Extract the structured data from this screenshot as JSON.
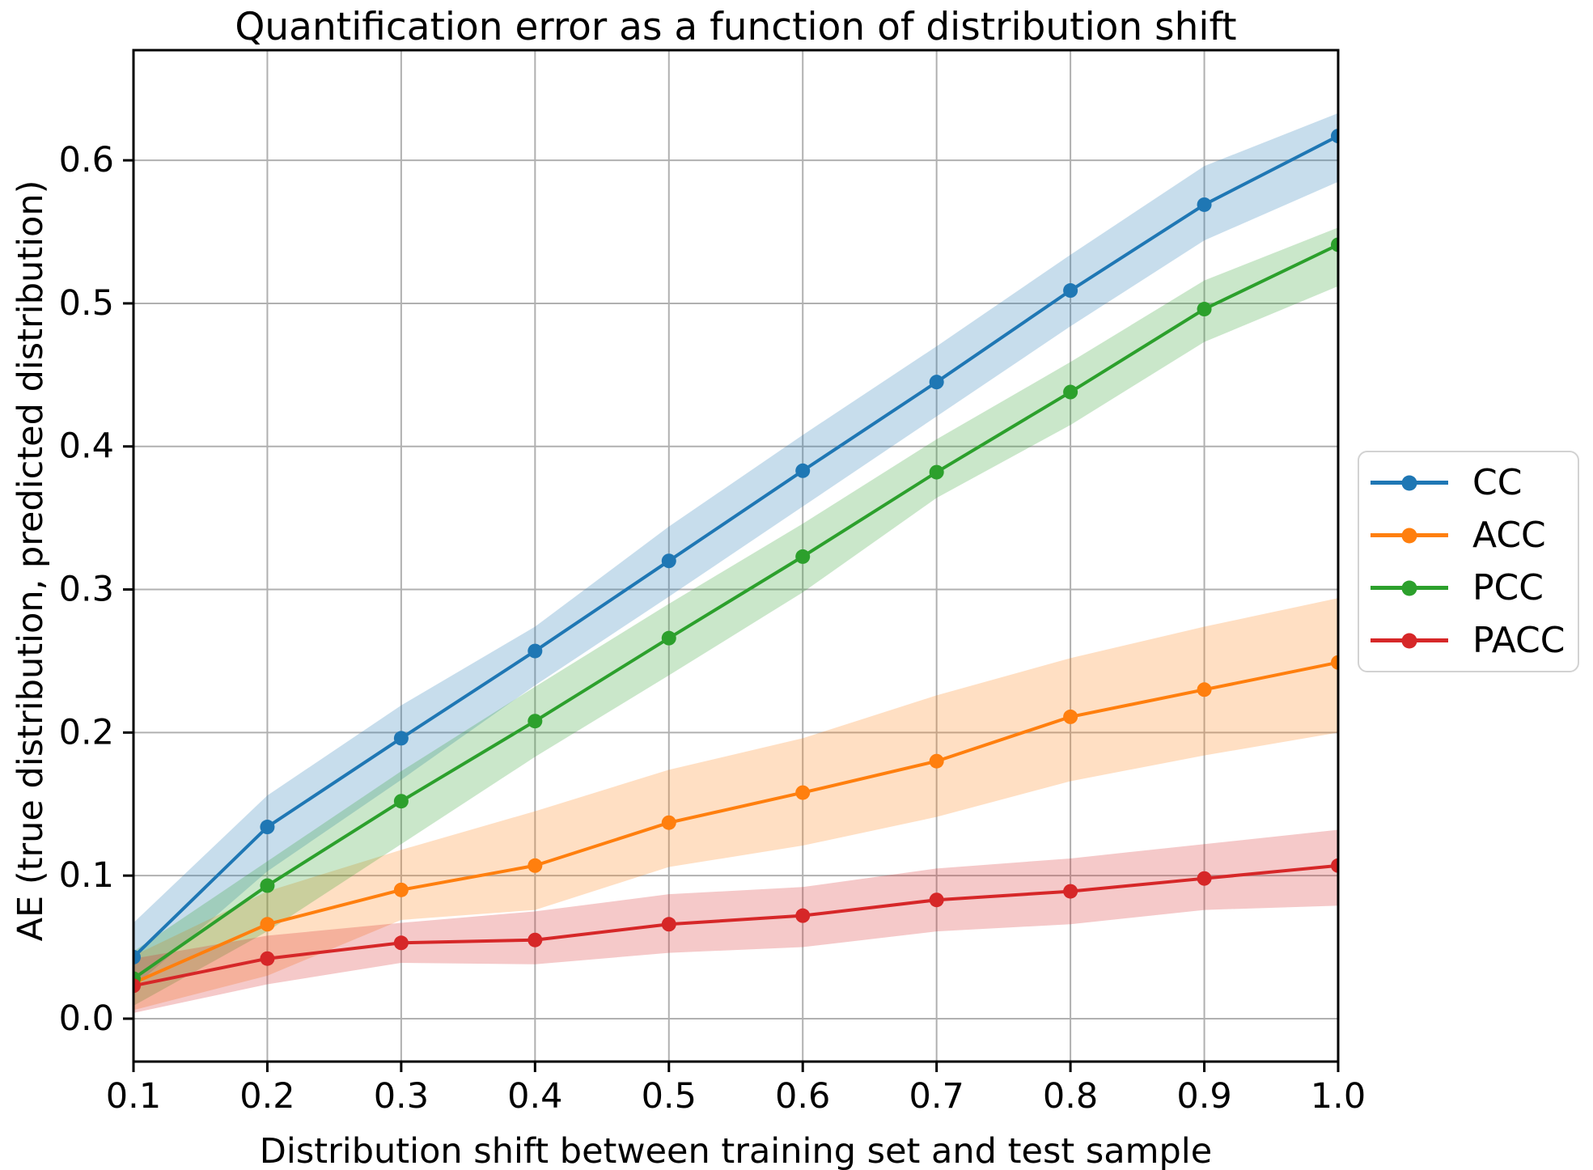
{
  "figure": {
    "background": "#ffffff",
    "title": "Quantification error as a function of distribution shift"
  },
  "chart_data": {
    "type": "line",
    "title": "Quantification error as a function of distribution shift",
    "xlabel": "Distribution shift between training set and test sample",
    "ylabel": "AE (true distribution, predicted distribution)",
    "x": [
      0.1,
      0.2,
      0.3,
      0.4,
      0.5,
      0.6,
      0.7,
      0.8,
      0.9,
      1.0
    ],
    "xtick_labels": [
      "0.1",
      "0.2",
      "0.3",
      "0.4",
      "0.5",
      "0.6",
      "0.7",
      "0.8",
      "0.9",
      "1.0"
    ],
    "ytick_values": [
      0.0,
      0.1,
      0.2,
      0.3,
      0.4,
      0.5,
      0.6
    ],
    "ytick_labels": [
      "0.0",
      "0.1",
      "0.2",
      "0.3",
      "0.4",
      "0.5",
      "0.6"
    ],
    "xlim": [
      0.1,
      1.0
    ],
    "ylim": [
      -0.03,
      0.677
    ],
    "grid": true,
    "grid_color": "#b0b0b0",
    "band_opacity": 0.25,
    "legend_position": "right-outside",
    "series": [
      {
        "name": "CC",
        "color": "#1f77b4",
        "values": [
          0.043,
          0.134,
          0.196,
          0.257,
          0.32,
          0.383,
          0.445,
          0.509,
          0.569,
          0.617
        ],
        "band_lower": [
          0.022,
          0.103,
          0.167,
          0.233,
          0.295,
          0.358,
          0.421,
          0.484,
          0.544,
          0.585
        ],
        "band_upper": [
          0.067,
          0.156,
          0.219,
          0.274,
          0.344,
          0.408,
          0.47,
          0.534,
          0.596,
          0.633
        ]
      },
      {
        "name": "ACC",
        "color": "#ff7f0e",
        "values": [
          0.025,
          0.066,
          0.09,
          0.107,
          0.137,
          0.158,
          0.18,
          0.211,
          0.23,
          0.249
        ],
        "band_lower": [
          0.006,
          0.03,
          0.069,
          0.076,
          0.106,
          0.121,
          0.141,
          0.166,
          0.184,
          0.2
        ],
        "band_upper": [
          0.044,
          0.089,
          0.118,
          0.145,
          0.174,
          0.196,
          0.226,
          0.252,
          0.274,
          0.294
        ]
      },
      {
        "name": "PCC",
        "color": "#2ca02c",
        "values": [
          0.028,
          0.093,
          0.152,
          0.208,
          0.266,
          0.323,
          0.382,
          0.438,
          0.496,
          0.541
        ],
        "band_lower": [
          0.009,
          0.061,
          0.122,
          0.183,
          0.24,
          0.298,
          0.364,
          0.415,
          0.473,
          0.512
        ],
        "band_upper": [
          0.047,
          0.11,
          0.173,
          0.232,
          0.29,
          0.346,
          0.405,
          0.459,
          0.516,
          0.553
        ]
      },
      {
        "name": "PACC",
        "color": "#d62728",
        "values": [
          0.023,
          0.042,
          0.053,
          0.055,
          0.066,
          0.072,
          0.083,
          0.089,
          0.098,
          0.107
        ],
        "band_lower": [
          0.004,
          0.024,
          0.039,
          0.038,
          0.046,
          0.05,
          0.061,
          0.066,
          0.076,
          0.079
        ],
        "band_upper": [
          0.042,
          0.058,
          0.067,
          0.075,
          0.087,
          0.092,
          0.105,
          0.112,
          0.122,
          0.132
        ]
      }
    ]
  },
  "legend": {
    "items": [
      {
        "label": "CC",
        "color": "#1f77b4"
      },
      {
        "label": "ACC",
        "color": "#ff7f0e"
      },
      {
        "label": "PCC",
        "color": "#2ca02c"
      },
      {
        "label": "PACC",
        "color": "#d62728"
      }
    ]
  }
}
